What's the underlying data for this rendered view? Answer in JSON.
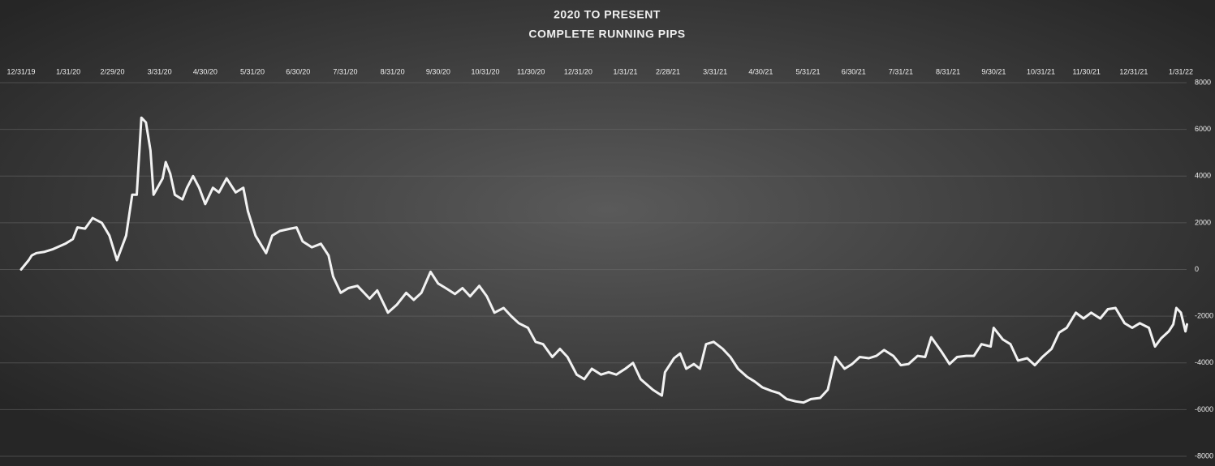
{
  "chart_data": {
    "type": "line",
    "title": "2020 TO PRESENT",
    "subtitle": "COMPLETE RUNNING PIPS",
    "x": [
      "12/31/19",
      "1/5/20",
      "1/7/20",
      "1/10/20",
      "1/15/20",
      "1/21/20",
      "1/29/20",
      "2/3/20",
      "2/6/20",
      "2/11/20",
      "2/16/20",
      "2/22/20",
      "2/27/20",
      "3/3/20",
      "3/9/20",
      "3/13/20",
      "3/16/20",
      "3/19/20",
      "3/22/20",
      "3/25/20",
      "3/27/20",
      "4/2/20",
      "4/4/20",
      "4/7/20",
      "4/10/20",
      "4/15/20",
      "4/18/20",
      "4/22/20",
      "4/26/20",
      "4/30/20",
      "5/5/20",
      "5/9/20",
      "5/14/20",
      "5/20/20",
      "5/25/20",
      "5/28/20",
      "6/2/20",
      "6/9/20",
      "6/13/20",
      "6/18/20",
      "6/25/20",
      "6/29/20",
      "7/3/20",
      "7/9/20",
      "7/15/20",
      "7/20/20",
      "7/23/20",
      "7/28/20",
      "8/2/20",
      "8/8/20",
      "8/16/20",
      "8/21/20",
      "8/28/20",
      "9/3/20",
      "9/9/20",
      "9/14/20",
      "9/19/20",
      "9/25/20",
      "9/30/20",
      "10/5/20",
      "10/11/20",
      "10/16/20",
      "10/21/20",
      "10/27/20",
      "11/1/20",
      "11/6/20",
      "11/12/20",
      "11/17/20",
      "11/22/20",
      "11/28/20",
      "12/3/20",
      "12/8/20",
      "12/14/20",
      "12/19/20",
      "12/24/20",
      "12/30/20",
      "1/4/21",
      "1/9/21",
      "1/15/21",
      "1/20/21",
      "1/25/21",
      "1/31/21",
      "2/5/21",
      "2/10/21",
      "2/18/21",
      "2/24/21",
      "2/26/21",
      "3/4/21",
      "3/8/21",
      "3/12/21",
      "3/17/21",
      "3/21/21",
      "3/25/21",
      "3/30/21",
      "4/5/21",
      "4/10/21",
      "4/15/21",
      "4/21/21",
      "4/26/21",
      "5/1/21",
      "5/7/21",
      "5/12/21",
      "5/17/21",
      "5/23/21",
      "5/28/21",
      "6/2/21",
      "6/8/21",
      "6/13/21",
      "6/18/21",
      "6/24/21",
      "6/29/21",
      "7/4/21",
      "7/10/21",
      "7/15/21",
      "7/20/21",
      "7/26/21",
      "7/31/21",
      "8/5/21",
      "8/11/21",
      "8/16/21",
      "8/20/21",
      "8/27/21",
      "9/1/21",
      "9/6/21",
      "9/12/21",
      "9/17/21",
      "9/22/21",
      "9/28/21",
      "9/30/21",
      "10/6/21",
      "10/11/21",
      "10/16/21",
      "10/22/21",
      "10/27/21",
      "11/1/21",
      "11/7/21",
      "11/12/21",
      "11/17/21",
      "11/23/21",
      "11/28/21",
      "12/3/21",
      "12/9/21",
      "12/14/21",
      "12/19/21",
      "12/25/21",
      "12/30/21",
      "1/4/22",
      "1/10/22",
      "1/14/22",
      "1/18/22",
      "1/23/22",
      "1/26/22",
      "1/28/22",
      "1/31/22",
      "2/3/22",
      "2/4/22"
    ],
    "series": [
      {
        "name": "Running Pips",
        "color": "#f2f2f2",
        "values": [
          0,
          400,
          600,
          700,
          750,
          870,
          1100,
          1300,
          1800,
          1750,
          2200,
          2000,
          1450,
          400,
          1450,
          3200,
          3200,
          6500,
          6300,
          5100,
          3200,
          3900,
          4600,
          4100,
          3200,
          3000,
          3500,
          4000,
          3500,
          2800,
          3500,
          3300,
          3900,
          3300,
          3500,
          2500,
          1450,
          700,
          1450,
          1650,
          1750,
          1800,
          1200,
          950,
          1100,
          600,
          -300,
          -1000,
          -800,
          -700,
          -1250,
          -900,
          -1850,
          -1500,
          -1000,
          -1300,
          -1000,
          -100,
          -600,
          -800,
          -1050,
          -800,
          -1150,
          -700,
          -1150,
          -1850,
          -1650,
          -2000,
          -2300,
          -2500,
          -3100,
          -3200,
          -3750,
          -3400,
          -3750,
          -4500,
          -4700,
          -4250,
          -4500,
          -4400,
          -4500,
          -4250,
          -4000,
          -4700,
          -5150,
          -5400,
          -4400,
          -3800,
          -3600,
          -4250,
          -4050,
          -4250,
          -3200,
          -3100,
          -3400,
          -3750,
          -4250,
          -4600,
          -4800,
          -5050,
          -5200,
          -5300,
          -5550,
          -5650,
          -5700,
          -5550,
          -5500,
          -5150,
          -3750,
          -4250,
          -4050,
          -3750,
          -3800,
          -3700,
          -3450,
          -3700,
          -4100,
          -4050,
          -3700,
          -3750,
          -2900,
          -3550,
          -4050,
          -3750,
          -3700,
          -3700,
          -3200,
          -3300,
          -2500,
          -3000,
          -3200,
          -3900,
          -3800,
          -4100,
          -3750,
          -3400,
          -2700,
          -2500,
          -1850,
          -2100,
          -1850,
          -2100,
          -1700,
          -1650,
          -2300,
          -2500,
          -2300,
          -2500,
          -3300,
          -2950,
          -2650,
          -2350,
          -1650,
          -1850,
          -2650,
          -2350
        ]
      }
    ],
    "xlim": [
      "12/31/19",
      "2/8/22"
    ],
    "xticks": [
      "12/31/19",
      "1/31/20",
      "2/29/20",
      "3/31/20",
      "4/30/20",
      "5/31/20",
      "6/30/20",
      "7/31/20",
      "8/31/20",
      "9/30/20",
      "10/31/20",
      "11/30/20",
      "12/31/20",
      "1/31/21",
      "2/28/21",
      "3/31/21",
      "4/30/21",
      "5/31/21",
      "6/30/21",
      "7/31/21",
      "8/31/21",
      "9/30/21",
      "10/31/21",
      "11/30/21",
      "12/31/21",
      "1/31/22"
    ],
    "ylim": [
      -8000,
      8000
    ],
    "yticks": [
      -8000,
      -6000,
      -4000,
      -2000,
      0,
      2000,
      4000,
      6000,
      8000
    ],
    "grid": true
  }
}
